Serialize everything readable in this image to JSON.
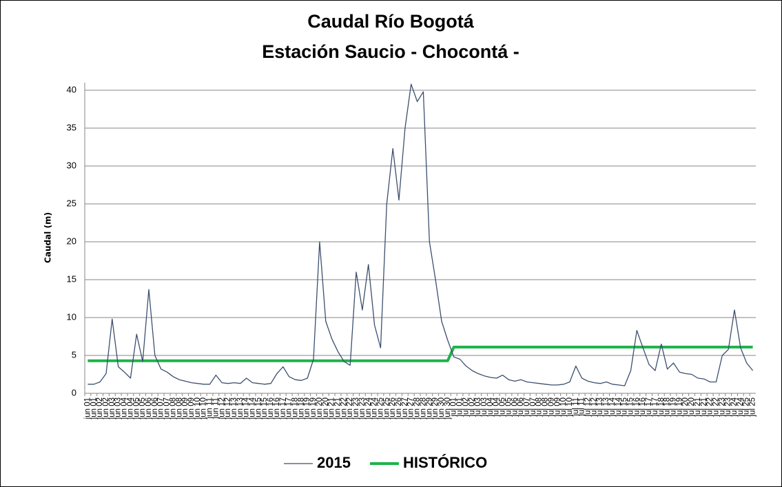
{
  "chart_data": {
    "type": "line",
    "title": "Caudal Río Bogotá",
    "subtitle": "Estación Saucio - Chocontá -",
    "y_label": "Caudal (m)",
    "categories": [
      "jun 01",
      "jun 01",
      "jun 02",
      "jun 02",
      "jun 03",
      "jun 03",
      "jun 04",
      "jun 04",
      "jun 05",
      "jun 05",
      "jun 06",
      "jun 06",
      "jun 07",
      "jun 07",
      "jun 08",
      "jun 08",
      "jun 09",
      "jun 09",
      "jun 10",
      "jun 10",
      "jun 11",
      "jun 11",
      "jun 12",
      "jun 12",
      "jun 13",
      "jun 13",
      "jun 14",
      "jun 14",
      "jun 15",
      "jun 15",
      "jun 16",
      "jun 16",
      "jun 17",
      "jun 17",
      "jun 18",
      "jun 18",
      "jun 19",
      "jun 19",
      "jun 20",
      "jun 20",
      "jun 21",
      "jun 21",
      "jun 22",
      "jun 22",
      "jun 23",
      "jun 23",
      "jun 24",
      "jun 24",
      "jun 25",
      "jun 25",
      "jun 26",
      "jun 26",
      "jun 27",
      "jun 27",
      "jun 28",
      "jun 28",
      "jun 29",
      "jun 29",
      "jun 30",
      "jun 30",
      "jul 01",
      "jul 01",
      "jul 02",
      "jul 02",
      "jul 03",
      "jul 03",
      "jul 04",
      "jul 04",
      "jul 05",
      "jul 05",
      "jul 06",
      "jul 06",
      "jul 07",
      "jul 07",
      "jul 08",
      "jul 08",
      "jul 09",
      "jul 09",
      "jul 10",
      "jul 10",
      "jul 11",
      "jul 11",
      "jul 12",
      "jul 12",
      "jul 13",
      "jul 13",
      "jul 14",
      "jul 14",
      "jul 15",
      "jul 15",
      "jul 16",
      "jul 16",
      "jul 17",
      "jul 17",
      "jul 18",
      "jul 18",
      "jul 19",
      "jul 19",
      "jul 20",
      "jul 20",
      "jul 21",
      "jul 21",
      "jul 22",
      "jul 22",
      "jul 23",
      "jul 23",
      "jul 24",
      "jul 24",
      "jul 25",
      "jul 25"
    ],
    "series": [
      {
        "name": "2015",
        "color": "#3b4e6e",
        "width": 1.3,
        "values": [
          1.2,
          1.2,
          1.5,
          2.6,
          9.8,
          3.5,
          2.8,
          2.0,
          7.8,
          4.2,
          13.7,
          5.0,
          3.2,
          2.8,
          2.2,
          1.8,
          1.6,
          1.4,
          1.3,
          1.2,
          1.2,
          2.4,
          1.4,
          1.3,
          1.4,
          1.3,
          2.0,
          1.4,
          1.3,
          1.2,
          1.3,
          2.6,
          3.5,
          2.2,
          1.8,
          1.7,
          2.0,
          4.5,
          20.0,
          9.5,
          7.2,
          5.5,
          4.2,
          3.7,
          16.0,
          11.0,
          17.0,
          9.0,
          6.0,
          25.0,
          32.3,
          25.5,
          35.0,
          40.8,
          38.5,
          39.8,
          20.0,
          15.0,
          9.5,
          7.0,
          4.8,
          4.5,
          3.6,
          3.0,
          2.6,
          2.3,
          2.1,
          2.0,
          2.4,
          1.8,
          1.6,
          1.8,
          1.5,
          1.4,
          1.3,
          1.2,
          1.1,
          1.1,
          1.2,
          1.5,
          3.6,
          2.0,
          1.6,
          1.4,
          1.3,
          1.5,
          1.2,
          1.1,
          1.0,
          3.0,
          8.3,
          6.0,
          3.8,
          3.0,
          6.5,
          3.2,
          4.0,
          2.8,
          2.6,
          2.5,
          2.0,
          1.9,
          1.5,
          1.5,
          5.0,
          5.8,
          11.0,
          6.0,
          4.0,
          3.0
        ]
      },
      {
        "name": "HISTÓRICO",
        "color": "#1db34a",
        "width": 4,
        "values": [
          4.3,
          4.3,
          4.3,
          4.3,
          4.3,
          4.3,
          4.3,
          4.3,
          4.3,
          4.3,
          4.3,
          4.3,
          4.3,
          4.3,
          4.3,
          4.3,
          4.3,
          4.3,
          4.3,
          4.3,
          4.3,
          4.3,
          4.3,
          4.3,
          4.3,
          4.3,
          4.3,
          4.3,
          4.3,
          4.3,
          4.3,
          4.3,
          4.3,
          4.3,
          4.3,
          4.3,
          4.3,
          4.3,
          4.3,
          4.3,
          4.3,
          4.3,
          4.3,
          4.3,
          4.3,
          4.3,
          4.3,
          4.3,
          4.3,
          4.3,
          4.3,
          4.3,
          4.3,
          4.3,
          4.3,
          4.3,
          4.3,
          4.3,
          4.3,
          4.3,
          6.1,
          6.1,
          6.1,
          6.1,
          6.1,
          6.1,
          6.1,
          6.1,
          6.1,
          6.1,
          6.1,
          6.1,
          6.1,
          6.1,
          6.1,
          6.1,
          6.1,
          6.1,
          6.1,
          6.1,
          6.1,
          6.1,
          6.1,
          6.1,
          6.1,
          6.1,
          6.1,
          6.1,
          6.1,
          6.1,
          6.1,
          6.1,
          6.1,
          6.1,
          6.1,
          6.1,
          6.1,
          6.1,
          6.1,
          6.1,
          6.1,
          6.1,
          6.1,
          6.1,
          6.1,
          6.1,
          6.1,
          6.1,
          6.1,
          6.1
        ]
      }
    ],
    "ylim": [
      0,
      41
    ],
    "yticks": [
      0,
      5,
      10,
      15,
      20,
      25,
      30,
      35,
      40
    ],
    "grid": true,
    "legend": "bottom"
  }
}
